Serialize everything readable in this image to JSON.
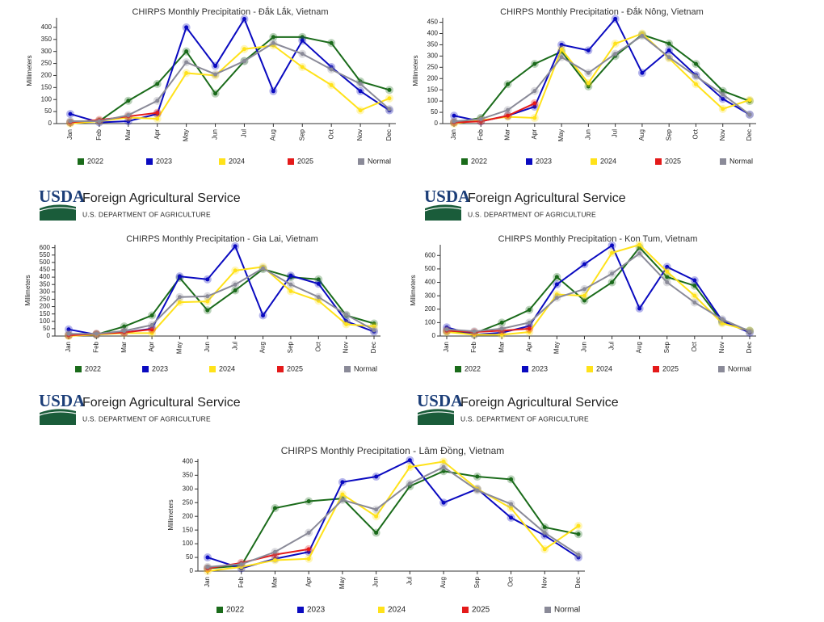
{
  "chart_data": [
    {
      "type": "line",
      "title": "CHIRPS Monthly Precipitation - Đắk Lắk, Vietnam",
      "y_label": "Millimeters",
      "categories": [
        "Jan",
        "Feb",
        "Mar",
        "Apr",
        "May",
        "Jun",
        "Jul",
        "Aug",
        "Sep",
        "Oct",
        "Nov",
        "Dec"
      ],
      "ylim": [
        0,
        440
      ],
      "yticks": [
        0,
        50,
        100,
        150,
        200,
        250,
        300,
        350,
        400
      ],
      "series": [
        {
          "name": "2022",
          "color": "#1a6b1a",
          "values": [
            5,
            10,
            95,
            165,
            300,
            125,
            260,
            360,
            360,
            335,
            175,
            140
          ]
        },
        {
          "name": "2023",
          "color": "#0a0ac0",
          "values": [
            40,
            5,
            10,
            40,
            400,
            240,
            435,
            135,
            345,
            235,
            135,
            55
          ]
        },
        {
          "name": "2024",
          "color": "#ffe21a",
          "values": [
            0,
            10,
            25,
            20,
            210,
            200,
            310,
            325,
            235,
            160,
            55,
            105
          ]
        },
        {
          "name": "2025",
          "color": "#e41a1a",
          "values": [
            5,
            15,
            30,
            45,
            null,
            null,
            null,
            null,
            null,
            null,
            null,
            null
          ]
        },
        {
          "name": "Normal",
          "color": "#8a8a98",
          "values": [
            10,
            10,
            35,
            95,
            255,
            205,
            260,
            335,
            290,
            225,
            165,
            60
          ]
        }
      ]
    },
    {
      "type": "line",
      "title": "CHIRPS Monthly Precipitation - Đắk Nông, Vietnam",
      "y_label": "Millimeters",
      "categories": [
        "Jan",
        "Feb",
        "Mar",
        "Apr",
        "May",
        "Jun",
        "Jul",
        "Aug",
        "Sep",
        "Oct",
        "Nov",
        "Dec"
      ],
      "ylim": [
        0,
        470
      ],
      "yticks": [
        0,
        50,
        100,
        150,
        200,
        250,
        300,
        350,
        400,
        450
      ],
      "series": [
        {
          "name": "2022",
          "color": "#1a6b1a",
          "values": [
            5,
            25,
            175,
            265,
            320,
            165,
            300,
            395,
            355,
            265,
            145,
            100
          ]
        },
        {
          "name": "2023",
          "color": "#0a0ac0",
          "values": [
            35,
            10,
            35,
            75,
            350,
            325,
            465,
            225,
            325,
            215,
            110,
            40
          ]
        },
        {
          "name": "2024",
          "color": "#ffe21a",
          "values": [
            0,
            15,
            30,
            25,
            330,
            180,
            355,
            400,
            290,
            175,
            65,
            105
          ]
        },
        {
          "name": "2025",
          "color": "#e41a1a",
          "values": [
            5,
            10,
            35,
            90,
            null,
            null,
            null,
            null,
            null,
            null,
            null,
            null
          ]
        },
        {
          "name": "Normal",
          "color": "#8a8a98",
          "values": [
            10,
            20,
            60,
            145,
            295,
            225,
            310,
            390,
            295,
            210,
            130,
            40
          ]
        }
      ]
    },
    {
      "type": "line",
      "title": "CHIRPS Monthly Precipitation - Gia Lai, Vietnam",
      "y_label": "Millimeters",
      "categories": [
        "Jan",
        "Feb",
        "Mar",
        "Apr",
        "May",
        "Jun",
        "Jul",
        "Aug",
        "Sep",
        "Oct",
        "Nov",
        "Dec"
      ],
      "ylim": [
        0,
        620
      ],
      "yticks": [
        0,
        50,
        100,
        150,
        200,
        250,
        300,
        350,
        400,
        450,
        500,
        550,
        600
      ],
      "series": [
        {
          "name": "2022",
          "color": "#1a6b1a",
          "values": [
            5,
            10,
            65,
            140,
            395,
            175,
            310,
            455,
            400,
            385,
            140,
            85
          ]
        },
        {
          "name": "2023",
          "color": "#0a0ac0",
          "values": [
            45,
            10,
            25,
            50,
            405,
            385,
            610,
            140,
            410,
            355,
            100,
            30
          ]
        },
        {
          "name": "2024",
          "color": "#ffe21a",
          "values": [
            0,
            10,
            20,
            20,
            230,
            235,
            445,
            470,
            305,
            240,
            80,
            65
          ]
        },
        {
          "name": "2025",
          "color": "#e41a1a",
          "values": [
            5,
            15,
            25,
            45,
            null,
            null,
            null,
            null,
            null,
            null,
            null,
            null
          ]
        },
        {
          "name": "Normal",
          "color": "#8a8a98",
          "values": [
            15,
            15,
            35,
            75,
            265,
            270,
            350,
            460,
            350,
            265,
            145,
            40
          ]
        }
      ]
    },
    {
      "type": "line",
      "title": "CHIRPS Monthly Precipitation - Kon Tum, Vietnam",
      "y_label": "Millimeters",
      "categories": [
        "Jan",
        "Feb",
        "Mar",
        "Apr",
        "May",
        "Jun",
        "Jul",
        "Aug",
        "Sep",
        "Oct",
        "Nov",
        "Dec"
      ],
      "ylim": [
        0,
        680
      ],
      "yticks": [
        0,
        100,
        200,
        300,
        400,
        500,
        600
      ],
      "series": [
        {
          "name": "2022",
          "color": "#1a6b1a",
          "values": [
            35,
            20,
            100,
            195,
            440,
            265,
            400,
            660,
            440,
            375,
            105,
            40
          ]
        },
        {
          "name": "2023",
          "color": "#0a0ac0",
          "values": [
            65,
            10,
            25,
            75,
            385,
            535,
            675,
            205,
            515,
            415,
            115,
            25
          ]
        },
        {
          "name": "2024",
          "color": "#ffe21a",
          "values": [
            30,
            10,
            10,
            30,
            310,
            300,
            620,
            680,
            480,
            300,
            95,
            40
          ]
        },
        {
          "name": "2025",
          "color": "#e41a1a",
          "values": [
            40,
            30,
            40,
            55,
            null,
            null,
            null,
            null,
            null,
            null,
            null,
            null
          ]
        },
        {
          "name": "Normal",
          "color": "#8a8a98",
          "values": [
            50,
            35,
            55,
            100,
            285,
            350,
            465,
            615,
            400,
            250,
            125,
            35
          ]
        }
      ]
    },
    {
      "type": "line",
      "title": "CHIRPS Monthly Precipitation - Lâm Đồng, Vietnam",
      "y_label": "Millimeters",
      "categories": [
        "Jan",
        "Feb",
        "Mar",
        "Apr",
        "May",
        "Jun",
        "Jul",
        "Aug",
        "Sep",
        "Oct",
        "Nov",
        "Dec"
      ],
      "ylim": [
        0,
        410
      ],
      "yticks": [
        0,
        50,
        100,
        150,
        200,
        250,
        300,
        350,
        400
      ],
      "series": [
        {
          "name": "2022",
          "color": "#1a6b1a",
          "values": [
            10,
            20,
            230,
            255,
            265,
            140,
            310,
            365,
            345,
            335,
            160,
            135
          ]
        },
        {
          "name": "2023",
          "color": "#0a0ac0",
          "values": [
            50,
            10,
            45,
            70,
            325,
            345,
            405,
            250,
            300,
            195,
            130,
            50
          ]
        },
        {
          "name": "2024",
          "color": "#ffe21a",
          "values": [
            0,
            15,
            40,
            45,
            280,
            200,
            380,
            400,
            300,
            230,
            80,
            165
          ]
        },
        {
          "name": "2025",
          "color": "#e41a1a",
          "values": [
            10,
            30,
            60,
            80,
            null,
            null,
            null,
            null,
            null,
            null,
            null,
            null
          ]
        },
        {
          "name": "Normal",
          "color": "#8a8a98",
          "values": [
            15,
            25,
            70,
            140,
            260,
            225,
            320,
            380,
            295,
            245,
            140,
            60
          ]
        }
      ]
    }
  ],
  "logos": [
    {
      "mark": "USDA",
      "agency": "Foreign Agricultural Service",
      "department": "U.S. DEPARTMENT OF AGRICULTURE"
    },
    {
      "mark": "USDA",
      "agency": "Foreign Agricultural Service",
      "department": "U.S. DEPARTMENT OF AGRICULTURE"
    },
    {
      "mark": "USDA",
      "agency": "Foreign Agricultural Service",
      "department": "U.S. DEPARTMENT OF AGRICULTURE"
    },
    {
      "mark": "USDA",
      "agency": "Foreign Agricultural Service",
      "department": "U.S. DEPARTMENT OF AGRICULTURE"
    }
  ]
}
